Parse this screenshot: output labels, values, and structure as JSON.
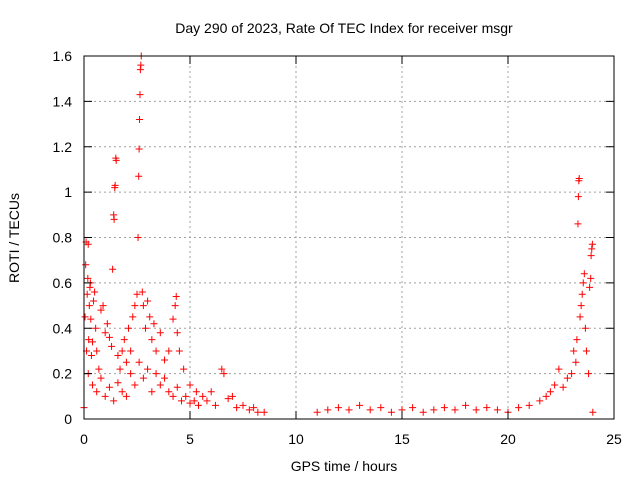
{
  "chart_data": {
    "type": "scatter",
    "title": "Day 290 of 2023, Rate Of TEC Index for receiver msgr",
    "xlabel": "GPS time / hours",
    "ylabel": "ROTI / TECUs",
    "xlim": [
      0,
      25
    ],
    "ylim": [
      0,
      1.6
    ],
    "x_ticks": [
      "0",
      "5",
      "10",
      "15",
      "20",
      "25"
    ],
    "y_ticks": [
      "0",
      "0.2",
      "0.4",
      "0.6",
      "0.8",
      "1",
      "1.2",
      "1.4",
      "1.6"
    ],
    "grid": true,
    "marker": "+",
    "color": "#ff0000",
    "series": [
      {
        "points": [
          [
            0.0,
            0.05
          ],
          [
            0.05,
            0.45
          ],
          [
            0.08,
            0.68
          ],
          [
            0.1,
            0.78
          ],
          [
            0.12,
            0.3
          ],
          [
            0.15,
            0.55
          ],
          [
            0.18,
            0.62
          ],
          [
            0.2,
            0.77
          ],
          [
            0.22,
            0.35
          ],
          [
            0.25,
            0.5
          ],
          [
            0.28,
            0.58
          ],
          [
            0.3,
            0.6
          ],
          [
            0.32,
            0.44
          ],
          [
            0.35,
            0.28
          ],
          [
            0.4,
            0.34
          ],
          [
            0.45,
            0.52
          ],
          [
            0.5,
            0.56
          ],
          [
            0.55,
            0.4
          ],
          [
            0.6,
            0.3
          ],
          [
            0.7,
            0.22
          ],
          [
            0.8,
            0.48
          ],
          [
            0.9,
            0.5
          ],
          [
            1.0,
            0.38
          ],
          [
            1.1,
            0.42
          ],
          [
            1.2,
            0.36
          ],
          [
            1.3,
            0.32
          ],
          [
            1.35,
            0.66
          ],
          [
            1.4,
            0.9
          ],
          [
            1.42,
            0.88
          ],
          [
            1.45,
            1.02
          ],
          [
            1.47,
            1.03
          ],
          [
            1.5,
            1.15
          ],
          [
            1.52,
            1.14
          ],
          [
            1.6,
            0.28
          ],
          [
            1.7,
            0.22
          ],
          [
            1.8,
            0.3
          ],
          [
            1.9,
            0.35
          ],
          [
            2.0,
            0.25
          ],
          [
            2.1,
            0.4
          ],
          [
            2.2,
            0.3
          ],
          [
            2.3,
            0.45
          ],
          [
            2.4,
            0.5
          ],
          [
            2.5,
            0.55
          ],
          [
            2.55,
            0.8
          ],
          [
            2.58,
            1.07
          ],
          [
            2.6,
            1.19
          ],
          [
            2.62,
            1.32
          ],
          [
            2.64,
            1.43
          ],
          [
            2.66,
            1.54
          ],
          [
            2.68,
            1.56
          ],
          [
            2.7,
            1.6
          ],
          [
            2.75,
            0.56
          ],
          [
            2.8,
            0.5
          ],
          [
            2.9,
            0.4
          ],
          [
            3.0,
            0.52
          ],
          [
            3.1,
            0.45
          ],
          [
            3.2,
            0.35
          ],
          [
            3.3,
            0.42
          ],
          [
            3.4,
            0.3
          ],
          [
            3.6,
            0.38
          ],
          [
            3.8,
            0.26
          ],
          [
            4.0,
            0.3
          ],
          [
            4.2,
            0.44
          ],
          [
            4.3,
            0.5
          ],
          [
            4.35,
            0.54
          ],
          [
            4.4,
            0.38
          ],
          [
            4.5,
            0.3
          ],
          [
            4.7,
            0.22
          ],
          [
            5.0,
            0.15
          ],
          [
            5.3,
            0.12
          ],
          [
            5.6,
            0.1
          ],
          [
            6.0,
            0.12
          ],
          [
            6.5,
            0.22
          ],
          [
            6.6,
            0.2
          ],
          [
            7.0,
            0.1
          ],
          [
            7.5,
            0.06
          ],
          [
            8.0,
            0.05
          ],
          [
            8.5,
            0.03
          ],
          [
            0.2,
            0.2
          ],
          [
            0.4,
            0.15
          ],
          [
            0.6,
            0.12
          ],
          [
            0.8,
            0.18
          ],
          [
            1.0,
            0.1
          ],
          [
            1.2,
            0.14
          ],
          [
            1.4,
            0.08
          ],
          [
            1.6,
            0.16
          ],
          [
            1.8,
            0.12
          ],
          [
            2.0,
            0.1
          ],
          [
            2.2,
            0.2
          ],
          [
            2.4,
            0.15
          ],
          [
            2.6,
            0.25
          ],
          [
            2.8,
            0.18
          ],
          [
            3.0,
            0.22
          ],
          [
            3.2,
            0.12
          ],
          [
            3.4,
            0.2
          ],
          [
            3.6,
            0.15
          ],
          [
            3.8,
            0.18
          ],
          [
            4.0,
            0.12
          ],
          [
            4.2,
            0.1
          ],
          [
            4.4,
            0.14
          ],
          [
            4.6,
            0.08
          ],
          [
            4.8,
            0.1
          ],
          [
            5.0,
            0.07
          ],
          [
            5.2,
            0.08
          ],
          [
            5.4,
            0.06
          ],
          [
            5.8,
            0.08
          ],
          [
            6.2,
            0.06
          ],
          [
            6.8,
            0.09
          ],
          [
            7.2,
            0.05
          ],
          [
            7.8,
            0.04
          ],
          [
            8.2,
            0.03
          ],
          [
            11.0,
            0.03
          ],
          [
            11.5,
            0.04
          ],
          [
            12.0,
            0.05
          ],
          [
            12.5,
            0.04
          ],
          [
            13.0,
            0.06
          ],
          [
            13.5,
            0.04
          ],
          [
            14.0,
            0.05
          ],
          [
            14.5,
            0.03
          ],
          [
            15.0,
            0.04
          ],
          [
            15.5,
            0.05
          ],
          [
            16.0,
            0.03
          ],
          [
            16.5,
            0.04
          ],
          [
            17.0,
            0.05
          ],
          [
            17.5,
            0.04
          ],
          [
            18.0,
            0.06
          ],
          [
            18.5,
            0.04
          ],
          [
            19.0,
            0.05
          ],
          [
            19.5,
            0.04
          ],
          [
            20.0,
            0.03
          ],
          [
            20.5,
            0.05
          ],
          [
            21.0,
            0.06
          ],
          [
            21.5,
            0.08
          ],
          [
            21.8,
            0.1
          ],
          [
            22.0,
            0.12
          ],
          [
            22.2,
            0.15
          ],
          [
            22.4,
            0.22
          ],
          [
            22.6,
            0.14
          ],
          [
            22.8,
            0.18
          ],
          [
            23.0,
            0.2
          ],
          [
            23.1,
            0.3
          ],
          [
            23.2,
            0.25
          ],
          [
            23.25,
            0.35
          ],
          [
            23.3,
            0.86
          ],
          [
            23.32,
            0.98
          ],
          [
            23.34,
            1.05
          ],
          [
            23.36,
            1.06
          ],
          [
            23.4,
            0.45
          ],
          [
            23.45,
            0.5
          ],
          [
            23.5,
            0.55
          ],
          [
            23.55,
            0.6
          ],
          [
            23.6,
            0.64
          ],
          [
            23.65,
            0.4
          ],
          [
            23.7,
            0.3
          ],
          [
            23.8,
            0.2
          ],
          [
            23.85,
            0.58
          ],
          [
            23.9,
            0.62
          ],
          [
            23.92,
            0.72
          ],
          [
            23.95,
            0.75
          ],
          [
            23.98,
            0.77
          ],
          [
            24.0,
            0.03
          ]
        ]
      }
    ]
  }
}
